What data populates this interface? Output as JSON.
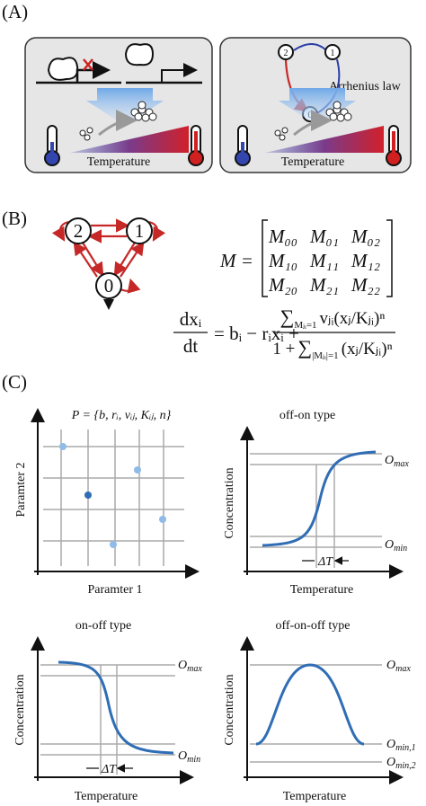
{
  "panel_a": {
    "label": "(A)",
    "left_box": {
      "temperature_label": "Temperature"
    },
    "right_box": {
      "nodes": [
        "2",
        "1",
        "0"
      ],
      "annotation": "Arrhenius law",
      "temperature_label": "Temperature"
    }
  },
  "panel_b": {
    "label": "(B)",
    "nodes": [
      "2",
      "1",
      "0"
    ],
    "matrix": {
      "name": "M =",
      "entries": [
        [
          "M₀₀",
          "M₀₁",
          "M₀₂"
        ],
        [
          "M₁₀",
          "M₁₁",
          "M₁₂"
        ],
        [
          "M₂₀",
          "M₂₁",
          "M₂₂"
        ]
      ]
    },
    "equation": {
      "lhs_numerator": "dxᵢ",
      "lhs_denominator": "dt",
      "rhs_start": "= bᵢ − rᵢxᵢ +",
      "sum_sign": "∑",
      "numerator_sum_index": "Mⱼᵢ=1",
      "numerator_term": "vⱼᵢ(xⱼ/Kⱼᵢ)ⁿ",
      "denominator_start": "1 +",
      "denominator_sum_index": "|Mⱼᵢ|=1",
      "denominator_term": "(xⱼ/Kⱼᵢ)ⁿ"
    }
  },
  "panel_c": {
    "label": "(C)",
    "parameter_set": "P = {b, rᵢ, vᵢⱼ, Kᵢⱼ, n}",
    "scatter": {
      "y_label": "Paramter 2",
      "x_label": "Paramter 1"
    },
    "plots": [
      {
        "title": "off-on type",
        "y_label": "Concentration",
        "x_label": "Temperature",
        "delta": "ΔT",
        "levels": [
          {
            "symbol": "O",
            "sub": "max"
          },
          {
            "symbol": "O",
            "sub": "min"
          }
        ]
      },
      {
        "title": "on-off type",
        "y_label": "Concentration",
        "x_label": "Temperature",
        "delta": "ΔT",
        "levels": [
          {
            "symbol": "O",
            "sub": "max"
          },
          {
            "symbol": "O",
            "sub": "min"
          }
        ]
      },
      {
        "title": "off-on-off type",
        "y_label": "Concentration",
        "x_label": "Temperature",
        "levels": [
          {
            "symbol": "O",
            "sub": "max"
          },
          {
            "symbol": "O",
            "sub": "min,1"
          },
          {
            "symbol": "O",
            "sub": "min,2"
          }
        ]
      }
    ]
  }
}
